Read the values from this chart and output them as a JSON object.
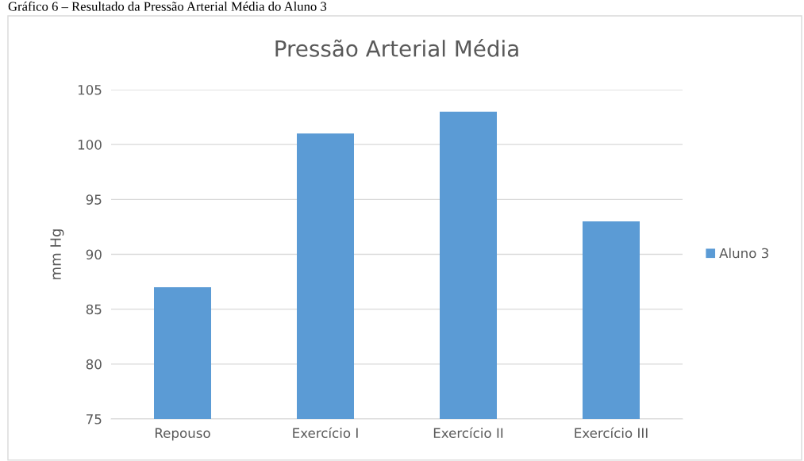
{
  "chart_data": {
    "type": "bar",
    "title": "Pressão Arterial Média",
    "ylabel": "mm Hg",
    "annotations": [
      "Gráfico 6 – Resultado da Pressão Arterial Média do Aluno 3"
    ],
    "categories": [
      "Repouso",
      "Exercício I",
      "Exercício II",
      "Exercício III"
    ],
    "series": [
      {
        "name": "Aluno 3",
        "color": "#5b9bd5",
        "values": [
          87,
          101,
          103,
          93
        ]
      }
    ],
    "ylim": [
      75,
      105
    ],
    "yticks": [
      75,
      80,
      85,
      90,
      95,
      100,
      105
    ],
    "grid": "y",
    "legend": "right"
  }
}
